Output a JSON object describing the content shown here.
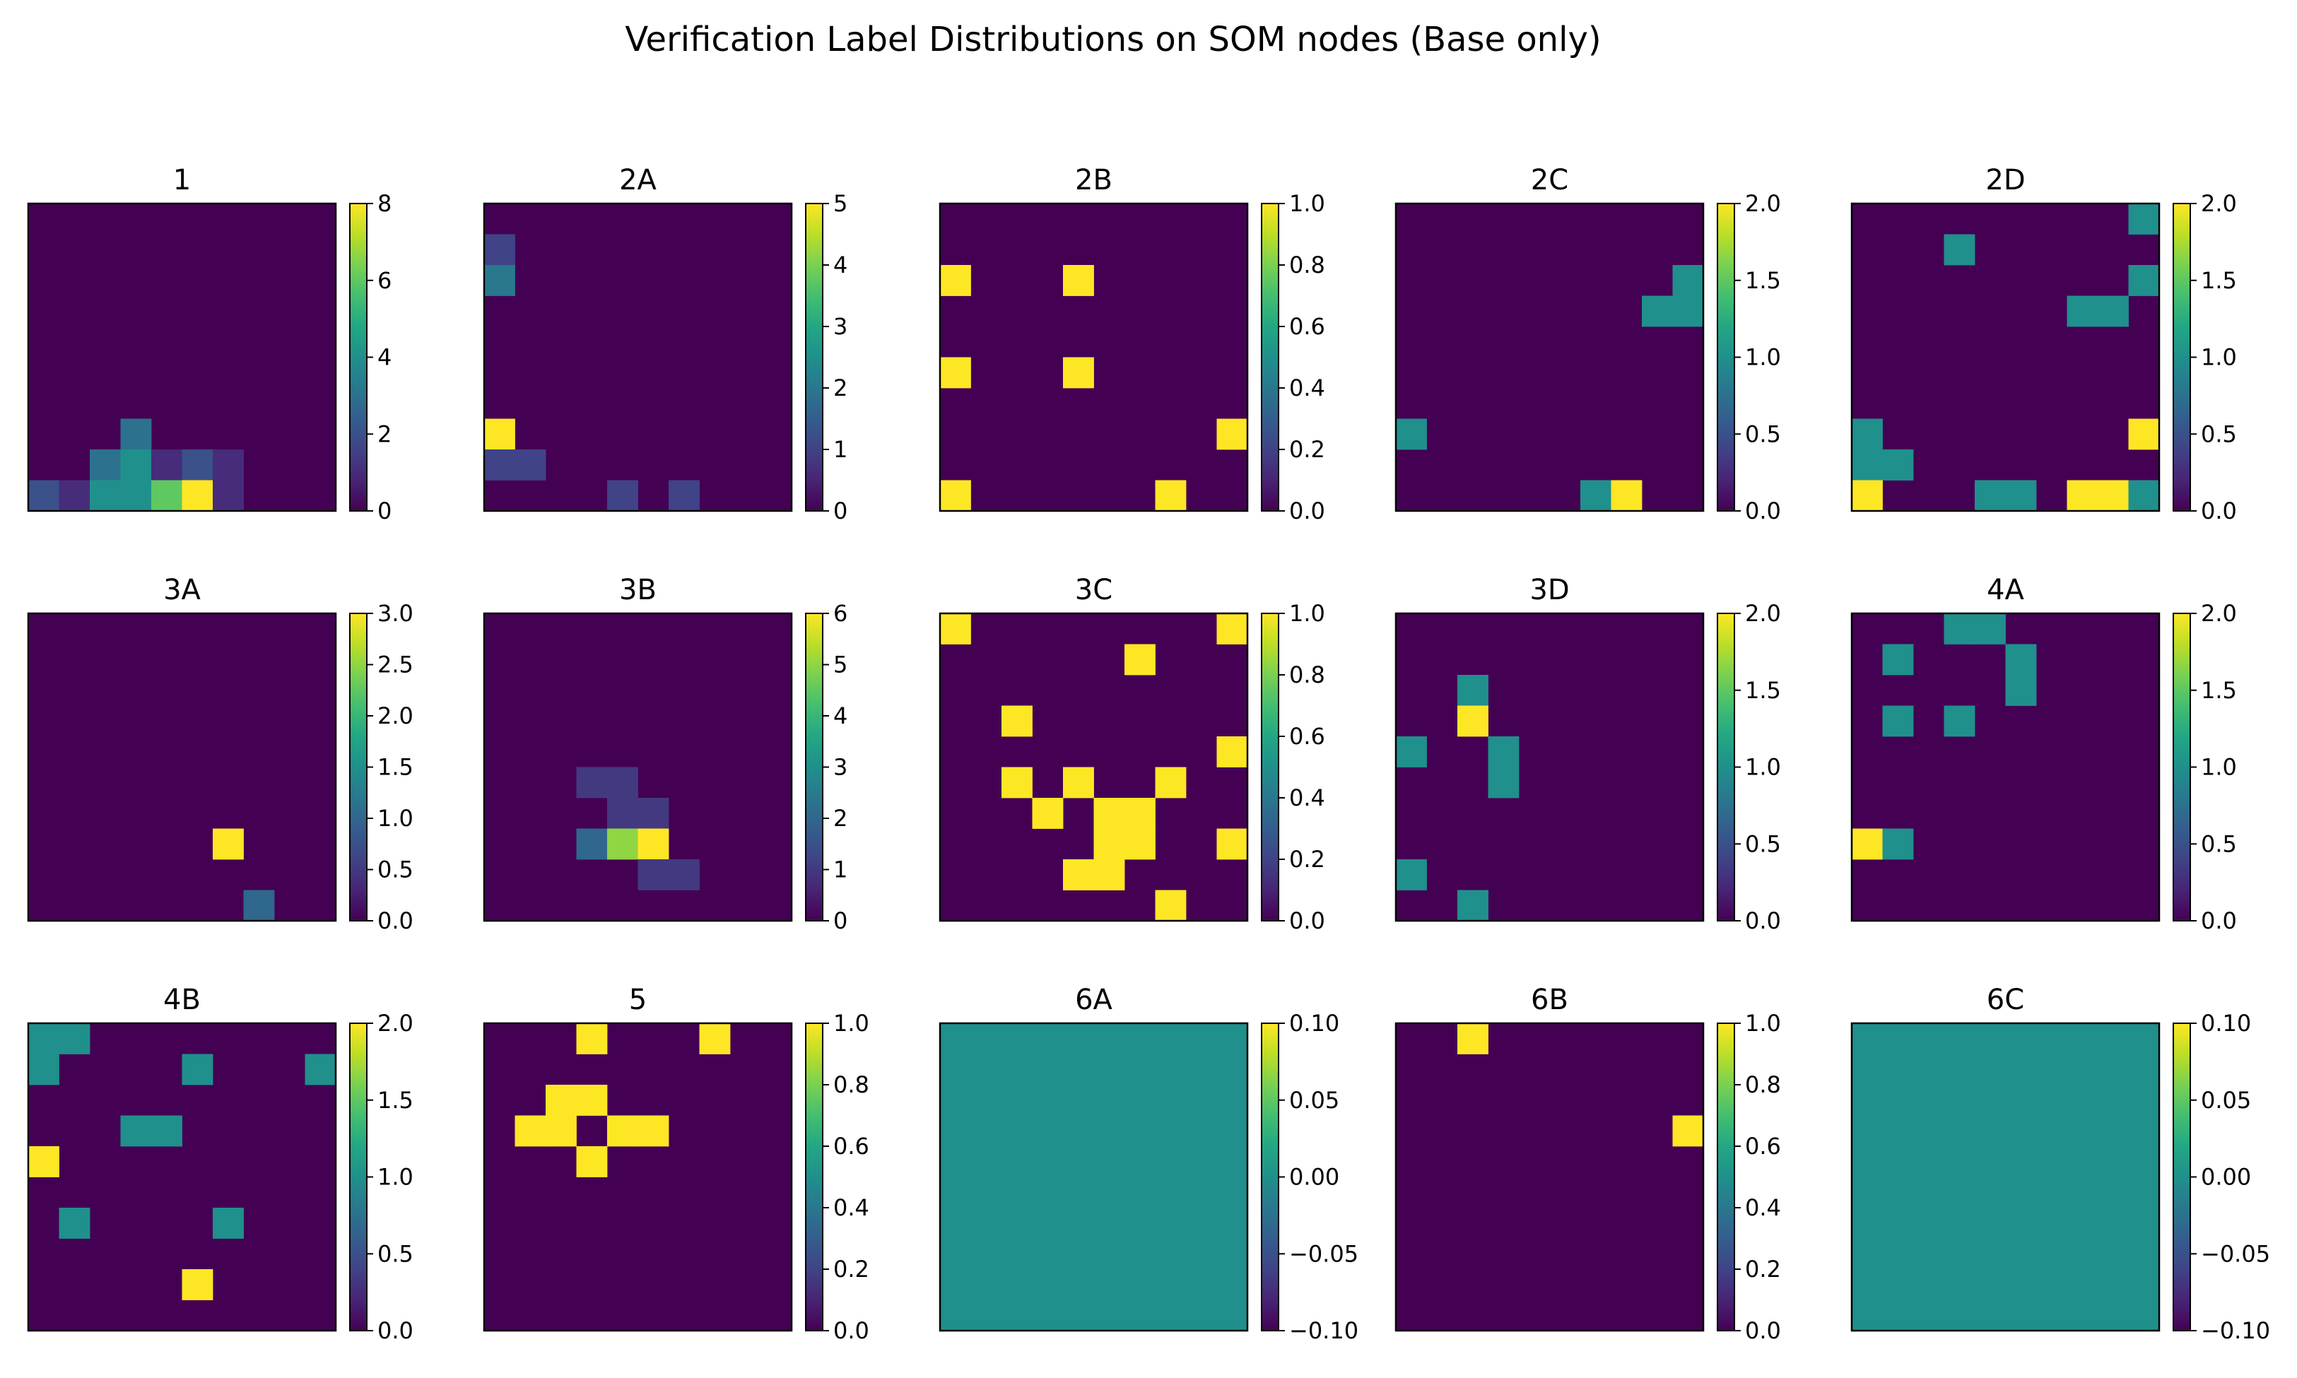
{
  "figure": {
    "title": "Verification Label Distributions on SOM nodes (Base only)"
  },
  "chart_data": [
    {
      "type": "heatmap",
      "title": "1",
      "grid_size": [
        10,
        10
      ],
      "colorscale": "viridis",
      "vmin": 0,
      "vmax": 8,
      "colorbar_ticks": [
        "0",
        "2",
        "4",
        "6",
        "8"
      ],
      "cells": [
        {
          "row": 7,
          "col": 3,
          "value": 3
        },
        {
          "row": 8,
          "col": 2,
          "value": 3
        },
        {
          "row": 8,
          "col": 3,
          "value": 4
        },
        {
          "row": 8,
          "col": 4,
          "value": 1
        },
        {
          "row": 8,
          "col": 5,
          "value": 2
        },
        {
          "row": 8,
          "col": 6,
          "value": 1
        },
        {
          "row": 9,
          "col": 0,
          "value": 2
        },
        {
          "row": 9,
          "col": 1,
          "value": 1
        },
        {
          "row": 9,
          "col": 2,
          "value": 4
        },
        {
          "row": 9,
          "col": 3,
          "value": 4
        },
        {
          "row": 9,
          "col": 4,
          "value": 6
        },
        {
          "row": 9,
          "col": 5,
          "value": 8
        },
        {
          "row": 9,
          "col": 6,
          "value": 1
        }
      ]
    },
    {
      "type": "heatmap",
      "title": "2A",
      "grid_size": [
        10,
        10
      ],
      "colorscale": "viridis",
      "vmin": 0,
      "vmax": 5,
      "colorbar_ticks": [
        "0",
        "1",
        "2",
        "3",
        "4",
        "5"
      ],
      "cells": [
        {
          "row": 1,
          "col": 0,
          "value": 1
        },
        {
          "row": 2,
          "col": 0,
          "value": 2
        },
        {
          "row": 7,
          "col": 0,
          "value": 5
        },
        {
          "row": 8,
          "col": 0,
          "value": 1
        },
        {
          "row": 8,
          "col": 1,
          "value": 1
        },
        {
          "row": 9,
          "col": 4,
          "value": 1
        },
        {
          "row": 9,
          "col": 6,
          "value": 1
        }
      ]
    },
    {
      "type": "heatmap",
      "title": "2B",
      "grid_size": [
        10,
        10
      ],
      "colorscale": "viridis",
      "vmin": 0,
      "vmax": 1,
      "colorbar_ticks": [
        "0.0",
        "0.2",
        "0.4",
        "0.6",
        "0.8",
        "1.0"
      ],
      "cells": [
        {
          "row": 2,
          "col": 0,
          "value": 1
        },
        {
          "row": 2,
          "col": 4,
          "value": 1
        },
        {
          "row": 5,
          "col": 0,
          "value": 1
        },
        {
          "row": 5,
          "col": 4,
          "value": 1
        },
        {
          "row": 7,
          "col": 9,
          "value": 1
        },
        {
          "row": 9,
          "col": 0,
          "value": 1
        },
        {
          "row": 9,
          "col": 7,
          "value": 1
        }
      ]
    },
    {
      "type": "heatmap",
      "title": "2C",
      "grid_size": [
        10,
        10
      ],
      "colorscale": "viridis",
      "vmin": 0,
      "vmax": 2,
      "colorbar_ticks": [
        "0.0",
        "0.5",
        "1.0",
        "1.5",
        "2.0"
      ],
      "cells": [
        {
          "row": 2,
          "col": 9,
          "value": 1
        },
        {
          "row": 3,
          "col": 8,
          "value": 1
        },
        {
          "row": 3,
          "col": 9,
          "value": 1
        },
        {
          "row": 7,
          "col": 0,
          "value": 1
        },
        {
          "row": 9,
          "col": 6,
          "value": 1
        },
        {
          "row": 9,
          "col": 7,
          "value": 2
        }
      ]
    },
    {
      "type": "heatmap",
      "title": "2D",
      "grid_size": [
        10,
        10
      ],
      "colorscale": "viridis",
      "vmin": 0,
      "vmax": 2,
      "colorbar_ticks": [
        "0.0",
        "0.5",
        "1.0",
        "1.5",
        "2.0"
      ],
      "cells": [
        {
          "row": 0,
          "col": 9,
          "value": 1
        },
        {
          "row": 1,
          "col": 3,
          "value": 1
        },
        {
          "row": 2,
          "col": 9,
          "value": 1
        },
        {
          "row": 3,
          "col": 7,
          "value": 1
        },
        {
          "row": 3,
          "col": 8,
          "value": 1
        },
        {
          "row": 7,
          "col": 0,
          "value": 1
        },
        {
          "row": 7,
          "col": 9,
          "value": 2
        },
        {
          "row": 8,
          "col": 0,
          "value": 1
        },
        {
          "row": 8,
          "col": 1,
          "value": 1
        },
        {
          "row": 9,
          "col": 0,
          "value": 2
        },
        {
          "row": 9,
          "col": 4,
          "value": 1
        },
        {
          "row": 9,
          "col": 5,
          "value": 1
        },
        {
          "row": 9,
          "col": 7,
          "value": 2
        },
        {
          "row": 9,
          "col": 8,
          "value": 2
        },
        {
          "row": 9,
          "col": 9,
          "value": 1
        }
      ]
    },
    {
      "type": "heatmap",
      "title": "3A",
      "grid_size": [
        10,
        10
      ],
      "colorscale": "viridis",
      "vmin": 0,
      "vmax": 3,
      "colorbar_ticks": [
        "0.0",
        "0.5",
        "1.0",
        "1.5",
        "2.0",
        "2.5",
        "3.0"
      ],
      "cells": [
        {
          "row": 7,
          "col": 6,
          "value": 3
        },
        {
          "row": 9,
          "col": 7,
          "value": 1
        }
      ]
    },
    {
      "type": "heatmap",
      "title": "3B",
      "grid_size": [
        10,
        10
      ],
      "colorscale": "viridis",
      "vmin": 0,
      "vmax": 6,
      "colorbar_ticks": [
        "0",
        "1",
        "2",
        "3",
        "4",
        "5",
        "6"
      ],
      "cells": [
        {
          "row": 5,
          "col": 3,
          "value": 1
        },
        {
          "row": 5,
          "col": 4,
          "value": 1
        },
        {
          "row": 6,
          "col": 4,
          "value": 1
        },
        {
          "row": 6,
          "col": 5,
          "value": 1
        },
        {
          "row": 7,
          "col": 3,
          "value": 2
        },
        {
          "row": 7,
          "col": 4,
          "value": 5
        },
        {
          "row": 7,
          "col": 5,
          "value": 6
        },
        {
          "row": 8,
          "col": 5,
          "value": 1
        },
        {
          "row": 8,
          "col": 6,
          "value": 1
        }
      ]
    },
    {
      "type": "heatmap",
      "title": "3C",
      "grid_size": [
        10,
        10
      ],
      "colorscale": "viridis",
      "vmin": 0,
      "vmax": 1,
      "colorbar_ticks": [
        "0.0",
        "0.2",
        "0.4",
        "0.6",
        "0.8",
        "1.0"
      ],
      "cells": [
        {
          "row": 0,
          "col": 0,
          "value": 1
        },
        {
          "row": 0,
          "col": 9,
          "value": 1
        },
        {
          "row": 1,
          "col": 6,
          "value": 1
        },
        {
          "row": 3,
          "col": 2,
          "value": 1
        },
        {
          "row": 4,
          "col": 9,
          "value": 1
        },
        {
          "row": 5,
          "col": 2,
          "value": 1
        },
        {
          "row": 5,
          "col": 4,
          "value": 1
        },
        {
          "row": 5,
          "col": 7,
          "value": 1
        },
        {
          "row": 6,
          "col": 3,
          "value": 1
        },
        {
          "row": 6,
          "col": 5,
          "value": 1
        },
        {
          "row": 6,
          "col": 6,
          "value": 1
        },
        {
          "row": 7,
          "col": 5,
          "value": 1
        },
        {
          "row": 7,
          "col": 6,
          "value": 1
        },
        {
          "row": 7,
          "col": 9,
          "value": 1
        },
        {
          "row": 8,
          "col": 4,
          "value": 1
        },
        {
          "row": 8,
          "col": 5,
          "value": 1
        },
        {
          "row": 9,
          "col": 7,
          "value": 1
        }
      ]
    },
    {
      "type": "heatmap",
      "title": "3D",
      "grid_size": [
        10,
        10
      ],
      "colorscale": "viridis",
      "vmin": 0,
      "vmax": 2,
      "colorbar_ticks": [
        "0.0",
        "0.5",
        "1.0",
        "1.5",
        "2.0"
      ],
      "cells": [
        {
          "row": 2,
          "col": 2,
          "value": 1
        },
        {
          "row": 3,
          "col": 2,
          "value": 2
        },
        {
          "row": 4,
          "col": 0,
          "value": 1
        },
        {
          "row": 4,
          "col": 3,
          "value": 1
        },
        {
          "row": 5,
          "col": 3,
          "value": 1
        },
        {
          "row": 8,
          "col": 0,
          "value": 1
        },
        {
          "row": 9,
          "col": 2,
          "value": 1
        }
      ]
    },
    {
      "type": "heatmap",
      "title": "4A",
      "grid_size": [
        10,
        10
      ],
      "colorscale": "viridis",
      "vmin": 0,
      "vmax": 2,
      "colorbar_ticks": [
        "0.0",
        "0.5",
        "1.0",
        "1.5",
        "2.0"
      ],
      "cells": [
        {
          "row": 0,
          "col": 3,
          "value": 1
        },
        {
          "row": 0,
          "col": 4,
          "value": 1
        },
        {
          "row": 1,
          "col": 1,
          "value": 1
        },
        {
          "row": 1,
          "col": 5,
          "value": 1
        },
        {
          "row": 2,
          "col": 5,
          "value": 1
        },
        {
          "row": 3,
          "col": 1,
          "value": 1
        },
        {
          "row": 3,
          "col": 3,
          "value": 1
        },
        {
          "row": 7,
          "col": 0,
          "value": 2
        },
        {
          "row": 7,
          "col": 1,
          "value": 1
        }
      ]
    },
    {
      "type": "heatmap",
      "title": "4B",
      "grid_size": [
        10,
        10
      ],
      "colorscale": "viridis",
      "vmin": 0,
      "vmax": 2,
      "colorbar_ticks": [
        "0.0",
        "0.5",
        "1.0",
        "1.5",
        "2.0"
      ],
      "cells": [
        {
          "row": 0,
          "col": 0,
          "value": 1
        },
        {
          "row": 0,
          "col": 1,
          "value": 1
        },
        {
          "row": 1,
          "col": 0,
          "value": 1
        },
        {
          "row": 1,
          "col": 5,
          "value": 1
        },
        {
          "row": 1,
          "col": 9,
          "value": 1
        },
        {
          "row": 3,
          "col": 3,
          "value": 1
        },
        {
          "row": 3,
          "col": 4,
          "value": 1
        },
        {
          "row": 4,
          "col": 0,
          "value": 2
        },
        {
          "row": 6,
          "col": 1,
          "value": 1
        },
        {
          "row": 6,
          "col": 6,
          "value": 1
        },
        {
          "row": 8,
          "col": 5,
          "value": 2
        }
      ]
    },
    {
      "type": "heatmap",
      "title": "5",
      "grid_size": [
        10,
        10
      ],
      "colorscale": "viridis",
      "vmin": 0,
      "vmax": 1,
      "colorbar_ticks": [
        "0.0",
        "0.2",
        "0.4",
        "0.6",
        "0.8",
        "1.0"
      ],
      "cells": [
        {
          "row": 0,
          "col": 3,
          "value": 1
        },
        {
          "row": 0,
          "col": 7,
          "value": 1
        },
        {
          "row": 2,
          "col": 2,
          "value": 1
        },
        {
          "row": 2,
          "col": 3,
          "value": 1
        },
        {
          "row": 3,
          "col": 1,
          "value": 1
        },
        {
          "row": 3,
          "col": 2,
          "value": 1
        },
        {
          "row": 3,
          "col": 4,
          "value": 1
        },
        {
          "row": 3,
          "col": 5,
          "value": 1
        },
        {
          "row": 4,
          "col": 3,
          "value": 1
        }
      ]
    },
    {
      "type": "heatmap",
      "title": "6A",
      "grid_size": [
        10,
        10
      ],
      "colorscale": "viridis",
      "vmin": -0.1,
      "vmax": 0.1,
      "fill_value": 0,
      "colorbar_ticks": [
        "−0.10",
        "−0.05",
        "0.00",
        "0.05",
        "0.10"
      ],
      "cells": []
    },
    {
      "type": "heatmap",
      "title": "6B",
      "grid_size": [
        10,
        10
      ],
      "colorscale": "viridis",
      "vmin": 0,
      "vmax": 1,
      "colorbar_ticks": [
        "0.0",
        "0.2",
        "0.4",
        "0.6",
        "0.8",
        "1.0"
      ],
      "cells": [
        {
          "row": 0,
          "col": 2,
          "value": 1
        },
        {
          "row": 3,
          "col": 9,
          "value": 1
        }
      ]
    },
    {
      "type": "heatmap",
      "title": "6C",
      "grid_size": [
        10,
        10
      ],
      "colorscale": "viridis",
      "vmin": -0.1,
      "vmax": 0.1,
      "fill_value": 0,
      "colorbar_ticks": [
        "−0.10",
        "−0.05",
        "0.00",
        "0.05",
        "0.10"
      ],
      "cells": []
    }
  ]
}
